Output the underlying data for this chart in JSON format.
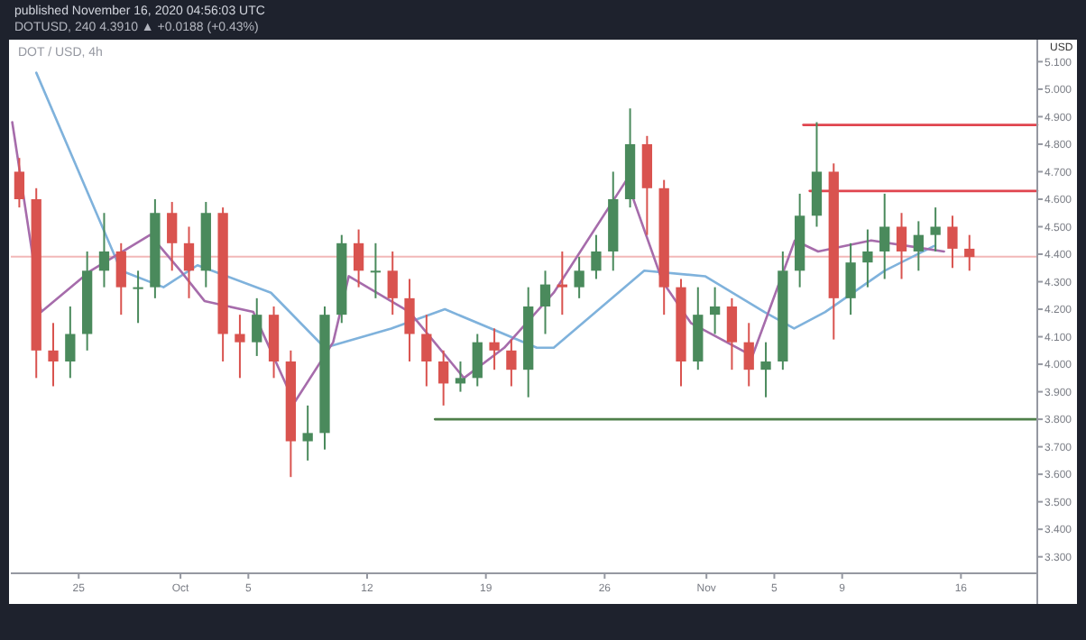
{
  "chart_data": {
    "type": "candlestick",
    "title": "DOT / USD, 4h",
    "ylabel": "USD",
    "annotations": [
      "published November 16, 2020 04:56:03 UTC",
      "DOTUSD, 240 4.3910 ▲ +0.0188 (+0.43%)"
    ],
    "x": [
      "2020-09-21T12:00",
      "2020-09-22T12:00",
      "2020-09-23T12:00",
      "2020-09-24T12:00",
      "2020-09-25T12:00",
      "2020-09-26T12:00",
      "2020-09-27T12:00",
      "2020-09-28T12:00",
      "2020-09-29T12:00",
      "2020-09-30T12:00",
      "2020-10-01T12:00",
      "2020-10-02T12:00",
      "2020-10-03T12:00",
      "2020-10-04T12:00",
      "2020-10-05T12:00",
      "2020-10-06T12:00",
      "2020-10-07T12:00",
      "2020-10-08T12:00",
      "2020-10-09T12:00",
      "2020-10-10T12:00",
      "2020-10-11T12:00",
      "2020-10-12T12:00",
      "2020-10-13T12:00",
      "2020-10-14T12:00",
      "2020-10-15T12:00",
      "2020-10-16T12:00",
      "2020-10-17T12:00",
      "2020-10-18T12:00",
      "2020-10-19T12:00",
      "2020-10-20T12:00",
      "2020-10-21T12:00",
      "2020-10-22T12:00",
      "2020-10-23T12:00",
      "2020-10-24T12:00",
      "2020-10-25T12:00",
      "2020-10-26T12:00",
      "2020-10-27T12:00",
      "2020-10-28T12:00",
      "2020-10-29T12:00",
      "2020-10-30T12:00",
      "2020-10-31T12:00",
      "2020-11-01T12:00",
      "2020-11-02T12:00",
      "2020-11-03T12:00",
      "2020-11-04T12:00",
      "2020-11-05T12:00",
      "2020-11-06T12:00",
      "2020-11-07T12:00",
      "2020-11-08T12:00",
      "2020-11-09T12:00",
      "2020-11-10T12:00",
      "2020-11-11T12:00",
      "2020-11-12T12:00",
      "2020-11-13T12:00",
      "2020-11-14T12:00",
      "2020-11-15T12:00",
      "2020-11-16T12:00"
    ],
    "ohlc": [
      [
        4.7,
        4.75,
        4.57,
        4.6
      ],
      [
        4.6,
        4.64,
        3.95,
        4.05
      ],
      [
        4.05,
        4.15,
        3.92,
        4.01
      ],
      [
        4.01,
        4.21,
        3.95,
        4.11
      ],
      [
        4.11,
        4.41,
        4.05,
        4.34
      ],
      [
        4.34,
        4.55,
        4.28,
        4.41
      ],
      [
        4.41,
        4.44,
        4.18,
        4.28
      ],
      [
        4.28,
        4.34,
        4.15,
        4.28
      ],
      [
        4.28,
        4.6,
        4.24,
        4.55
      ],
      [
        4.55,
        4.59,
        4.34,
        4.44
      ],
      [
        4.44,
        4.5,
        4.24,
        4.34
      ],
      [
        4.34,
        4.59,
        4.28,
        4.55
      ],
      [
        4.55,
        4.57,
        4.01,
        4.11
      ],
      [
        4.11,
        4.18,
        3.95,
        4.08
      ],
      [
        4.08,
        4.24,
        4.03,
        4.18
      ],
      [
        4.18,
        4.21,
        3.95,
        4.01
      ],
      [
        4.01,
        4.05,
        3.59,
        3.72
      ],
      [
        3.72,
        3.85,
        3.65,
        3.75
      ],
      [
        3.75,
        4.21,
        3.69,
        4.18
      ],
      [
        4.18,
        4.47,
        4.15,
        4.44
      ],
      [
        4.44,
        4.49,
        4.28,
        4.34
      ],
      [
        4.34,
        4.44,
        4.24,
        4.34
      ],
      [
        4.34,
        4.41,
        4.18,
        4.24
      ],
      [
        4.24,
        4.31,
        4.01,
        4.11
      ],
      [
        4.11,
        4.18,
        3.92,
        4.01
      ],
      [
        4.01,
        4.05,
        3.85,
        3.93
      ],
      [
        3.93,
        4.01,
        3.9,
        3.95
      ],
      [
        3.95,
        4.11,
        3.92,
        4.08
      ],
      [
        4.08,
        4.13,
        3.98,
        4.05
      ],
      [
        4.05,
        4.09,
        3.92,
        3.98
      ],
      [
        3.98,
        4.28,
        3.88,
        4.21
      ],
      [
        4.21,
        4.34,
        4.11,
        4.29
      ],
      [
        4.29,
        4.41,
        4.18,
        4.28
      ],
      [
        4.28,
        4.39,
        4.24,
        4.34
      ],
      [
        4.34,
        4.47,
        4.31,
        4.41
      ],
      [
        4.41,
        4.7,
        4.34,
        4.6
      ],
      [
        4.6,
        4.93,
        4.57,
        4.8
      ],
      [
        4.8,
        4.83,
        4.47,
        4.64
      ],
      [
        4.64,
        4.67,
        4.18,
        4.28
      ],
      [
        4.28,
        4.31,
        3.92,
        4.01
      ],
      [
        4.01,
        4.28,
        3.98,
        4.18
      ],
      [
        4.18,
        4.28,
        4.11,
        4.21
      ],
      [
        4.21,
        4.24,
        3.98,
        4.08
      ],
      [
        4.08,
        4.15,
        3.92,
        3.98
      ],
      [
        3.98,
        4.08,
        3.88,
        4.01
      ],
      [
        4.01,
        4.41,
        3.98,
        4.34
      ],
      [
        4.34,
        4.62,
        4.28,
        4.54
      ],
      [
        4.54,
        4.88,
        4.5,
        4.7
      ],
      [
        4.7,
        4.73,
        4.09,
        4.24
      ],
      [
        4.24,
        4.44,
        4.18,
        4.37
      ],
      [
        4.37,
        4.49,
        4.28,
        4.41
      ],
      [
        4.41,
        4.62,
        4.31,
        4.5
      ],
      [
        4.5,
        4.55,
        4.31,
        4.41
      ],
      [
        4.41,
        4.52,
        4.34,
        4.47
      ],
      [
        4.47,
        4.57,
        4.41,
        4.5
      ],
      [
        4.5,
        4.54,
        4.35,
        4.42
      ],
      [
        4.42,
        4.47,
        4.34,
        4.39
      ]
    ],
    "series": [
      {
        "type": "line",
        "color": "#7fb2dc",
        "x": [
          "2020-09-22T12:00",
          "2020-09-27T12:00",
          "2020-09-30T00:00",
          "2020-10-02T00:00",
          "2020-10-06T08:00",
          "2020-10-09T12:00",
          "2020-10-13T10:00",
          "2020-10-16T14:00",
          "2020-10-22T00:00",
          "2020-10-23T00:00",
          "2020-10-28T08:00",
          "2020-10-31T22:00",
          "2020-11-04T10:00",
          "2020-11-06T04:00",
          "2020-11-08T00:00",
          "2020-11-11T12:00",
          "2020-11-14T10:00"
        ],
        "values": [
          5.06,
          4.34,
          4.28,
          4.36,
          4.26,
          4.06,
          4.13,
          4.2,
          4.06,
          4.06,
          4.34,
          4.32,
          4.19,
          4.13,
          4.19,
          4.34,
          4.43
        ]
      },
      {
        "type": "line",
        "color": "#a66cab",
        "x": [
          "2020-09-21T02:00",
          "2020-09-22T19:00",
          "2020-09-25T17:00",
          "2020-09-29T05:00",
          "2020-10-01T00:00",
          "2020-10-02T10:00",
          "2020-10-05T07:00",
          "2020-10-07T17:00",
          "2020-10-10T00:00",
          "2020-10-10T22:00",
          "2020-10-14T12:00",
          "2020-10-17T17:00",
          "2020-10-20T02:00",
          "2020-10-23T00:00",
          "2020-10-27T07:00",
          "2020-10-29T10:00",
          "2020-10-31T02:00",
          "2020-11-03T17:00",
          "2020-11-06T05:00",
          "2020-11-07T14:00",
          "2020-11-10T17:00",
          "2020-11-15T00:00"
        ],
        "values": [
          4.88,
          4.19,
          4.34,
          4.47,
          4.34,
          4.23,
          4.19,
          3.86,
          4.08,
          4.32,
          4.19,
          3.95,
          4.06,
          4.26,
          4.67,
          4.3,
          4.15,
          4.03,
          4.45,
          4.41,
          4.45,
          4.41
        ]
      },
      {
        "type": "line",
        "color": "#e0454f",
        "x": [
          "2020-11-06T17:00",
          "2020-11-20T12:00"
        ],
        "values": [
          4.87,
          4.87
        ]
      },
      {
        "type": "line",
        "color": "#e0454f",
        "x": [
          "2020-11-07T02:00",
          "2020-11-20T12:00"
        ],
        "values": [
          4.63,
          4.63
        ]
      },
      {
        "type": "line",
        "color": "#4f7f4a",
        "x": [
          "2020-10-16T00:00",
          "2020-11-20T12:00"
        ],
        "values": [
          3.8,
          3.8
        ]
      }
    ],
    "ref_lines": [
      {
        "axis": "y",
        "value": 4.391,
        "color": "#f2b8b8"
      }
    ],
    "xlim": [
      "2020-09-21T00:00",
      "2020-11-20T12:00"
    ],
    "xticks": [
      {
        "value": "2020-09-25",
        "label": "25"
      },
      {
        "value": "2020-10-01",
        "label": "Oct"
      },
      {
        "value": "2020-10-05",
        "label": "5"
      },
      {
        "value": "2020-10-12",
        "label": "12"
      },
      {
        "value": "2020-10-19",
        "label": "19"
      },
      {
        "value": "2020-10-26",
        "label": "26"
      },
      {
        "value": "2020-11-01",
        "label": "Nov"
      },
      {
        "value": "2020-11-05",
        "label": "5"
      },
      {
        "value": "2020-11-09",
        "label": "9"
      },
      {
        "value": "2020-11-16",
        "label": "16"
      }
    ],
    "ylim": [
      3.24,
      5.18
    ],
    "yticks": [
      {
        "value": 3.3,
        "label": "3.300"
      },
      {
        "value": 3.4,
        "label": "3.400"
      },
      {
        "value": 3.5,
        "label": "3.500"
      },
      {
        "value": 3.6,
        "label": "3.600"
      },
      {
        "value": 3.7,
        "label": "3.700"
      },
      {
        "value": 3.8,
        "label": "3.800"
      },
      {
        "value": 3.9,
        "label": "3.900"
      },
      {
        "value": 4.0,
        "label": "4.000"
      },
      {
        "value": 4.1,
        "label": "4.100"
      },
      {
        "value": 4.2,
        "label": "4.200"
      },
      {
        "value": 4.3,
        "label": "4.300"
      },
      {
        "value": 4.4,
        "label": "4.400"
      },
      {
        "value": 4.5,
        "label": "4.500"
      },
      {
        "value": 4.6,
        "label": "4.600"
      },
      {
        "value": 4.7,
        "label": "4.700"
      },
      {
        "value": 4.8,
        "label": "4.800"
      },
      {
        "value": 4.9,
        "label": "4.900"
      },
      {
        "value": 5.0,
        "label": "5.000"
      },
      {
        "value": 5.1,
        "label": "5.100"
      }
    ],
    "grid": false
  }
}
